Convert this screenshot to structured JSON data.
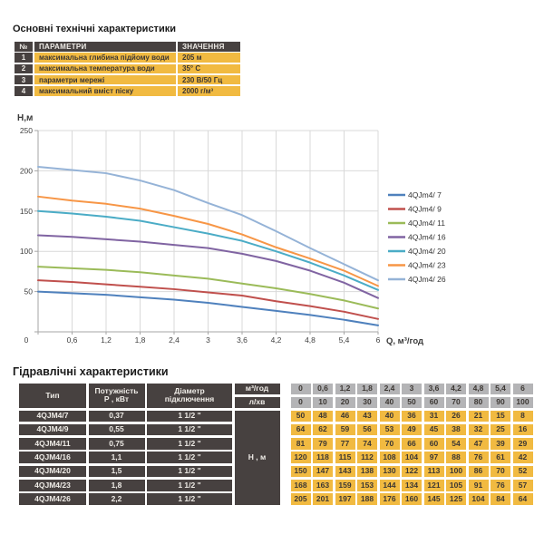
{
  "spec": {
    "title": "Основні технічні характеристики",
    "headers": {
      "num": "№",
      "param": "ПАРАМЕТРИ",
      "value": "ЗНАЧЕННЯ"
    },
    "rows": [
      {
        "num": "1",
        "param": "максимальна глибина підйому води",
        "value": "205 м"
      },
      {
        "num": "2",
        "param": "максимальна температура води",
        "value": "35° С"
      },
      {
        "num": "3",
        "param": "параметри мережі",
        "value": "230 В/50 Гц"
      },
      {
        "num": "4",
        "param": "максимальний вміст піску",
        "value": "2000 г/м³"
      }
    ]
  },
  "chart_data": {
    "type": "line",
    "title": "",
    "ylabel": "Н,м",
    "xlabel": "Q, м³/год",
    "x": [
      0,
      0.6,
      1.2,
      1.8,
      2.4,
      3,
      3.6,
      4.2,
      4.8,
      5.4,
      6
    ],
    "x_tick_labels": [
      "0",
      "0,6",
      "1,2",
      "1,8",
      "2,4",
      "3",
      "3,6",
      "4,2",
      "4,8",
      "5,4",
      "6"
    ],
    "xlim": [
      0,
      6
    ],
    "ylim": [
      0,
      250
    ],
    "y_ticks": [
      0,
      50,
      100,
      150,
      200,
      250
    ],
    "grid": true,
    "legend_position": "right",
    "series": [
      {
        "name": "4QJm4/ 7",
        "color": "#4F81BD",
        "values": [
          50,
          48,
          46,
          43,
          40,
          36,
          31,
          26,
          21,
          15,
          8
        ]
      },
      {
        "name": "4QJm4/ 9",
        "color": "#C0504D",
        "values": [
          64,
          62,
          59,
          56,
          53,
          49,
          45,
          38,
          32,
          25,
          16
        ]
      },
      {
        "name": "4QJm4/ 11",
        "color": "#9BBB59",
        "values": [
          81,
          79,
          77,
          74,
          70,
          66,
          60,
          54,
          47,
          39,
          29
        ]
      },
      {
        "name": "4QJm4/ 16",
        "color": "#8064A2",
        "values": [
          120,
          118,
          115,
          112,
          108,
          104,
          97,
          88,
          76,
          61,
          42
        ]
      },
      {
        "name": "4QJm4/ 20",
        "color": "#4BACC6",
        "values": [
          150,
          147,
          143,
          138,
          130,
          122,
          113,
          100,
          86,
          70,
          52
        ]
      },
      {
        "name": "4QJm4/ 23",
        "color": "#F79646",
        "values": [
          168,
          163,
          159,
          153,
          144,
          134,
          121,
          105,
          91,
          76,
          57
        ]
      },
      {
        "name": "4QJm4/ 26",
        "color": "#95B3D7",
        "values": [
          205,
          201,
          197,
          188,
          176,
          160,
          145,
          125,
          104,
          84,
          64
        ]
      }
    ]
  },
  "hydraulics": {
    "title": "Гідравлічні характеристики",
    "col_type": "Тип",
    "col_power_line1": "Потужність",
    "col_power_line2": "Р , кВт",
    "col_diameter_line1": "Діаметр",
    "col_diameter_line2": "підключення",
    "row_label_m3": "м³/год",
    "row_label_l": "л/хв",
    "head_label": "Н , м",
    "flow_m3": [
      "0",
      "0,6",
      "1,2",
      "1,8",
      "2,4",
      "3",
      "3,6",
      "4,2",
      "4,8",
      "5,4",
      "6"
    ],
    "flow_l": [
      "0",
      "10",
      "20",
      "30",
      "40",
      "50",
      "60",
      "70",
      "80",
      "90",
      "100"
    ],
    "pumps": [
      {
        "type": "4QJM4/7",
        "power": "0,37",
        "diameter": "1 1/2 \"",
        "heads": [
          50,
          48,
          46,
          43,
          40,
          36,
          31,
          26,
          21,
          15,
          8
        ]
      },
      {
        "type": "4QJM4/9",
        "power": "0,55",
        "diameter": "1 1/2 \"",
        "heads": [
          64,
          62,
          59,
          56,
          53,
          49,
          45,
          38,
          32,
          25,
          16
        ]
      },
      {
        "type": "4QJM4/11",
        "power": "0,75",
        "diameter": "1 1/2 \"",
        "heads": [
          81,
          79,
          77,
          74,
          70,
          66,
          60,
          54,
          47,
          39,
          29
        ]
      },
      {
        "type": "4QJM4/16",
        "power": "1,1",
        "diameter": "1 1/2 \"",
        "heads": [
          120,
          118,
          115,
          112,
          108,
          104,
          97,
          88,
          76,
          61,
          42
        ]
      },
      {
        "type": "4QJM4/20",
        "power": "1,5",
        "diameter": "1 1/2 \"",
        "heads": [
          150,
          147,
          143,
          138,
          130,
          122,
          113,
          100,
          86,
          70,
          52
        ]
      },
      {
        "type": "4QJM4/23",
        "power": "1,8",
        "diameter": "1 1/2 \"",
        "heads": [
          168,
          163,
          159,
          153,
          144,
          134,
          121,
          105,
          91,
          76,
          57
        ]
      },
      {
        "type": "4QJM4/26",
        "power": "2,2",
        "diameter": "1 1/2 \"",
        "heads": [
          205,
          201,
          197,
          188,
          176,
          160,
          145,
          125,
          104,
          84,
          64
        ]
      }
    ]
  },
  "colors": {
    "dark_cell": "#474140",
    "yellow_cell": "#f1ba41",
    "gray_cell": "#b4b4b6",
    "grid_line": "#d9d9d9",
    "axis_line": "#a6a6a6"
  }
}
